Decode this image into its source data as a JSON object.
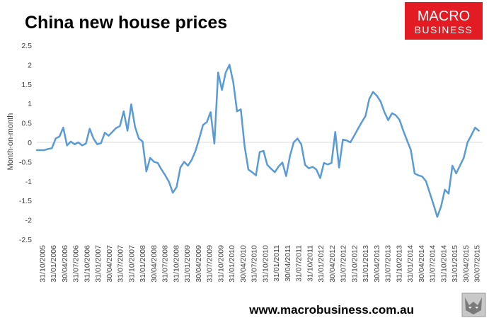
{
  "chart_data": {
    "type": "line",
    "title": "China new house prices",
    "xlabel": "",
    "ylabel": "Month-on-month",
    "ylim": [
      -2.5,
      2.5
    ],
    "yticks": [
      2.5,
      2,
      1.5,
      1,
      0.5,
      0,
      -0.5,
      -1,
      -1.5,
      -2,
      -2.5
    ],
    "grid": false,
    "legend": "none",
    "line_color": "#5b9bd5",
    "x_tick_labels": [
      "31/10/2005",
      "31/01/2006",
      "30/04/2006",
      "31/07/2006",
      "31/10/2006",
      "31/01/2007",
      "30/04/2007",
      "31/07/2007",
      "31/10/2007",
      "31/01/2008",
      "30/04/2008",
      "31/07/2008",
      "31/10/2008",
      "31/01/2009",
      "30/04/2009",
      "31/07/2009",
      "31/10/2009",
      "31/01/2010",
      "30/04/2010",
      "31/07/2010",
      "31/10/2010",
      "31/01/2011",
      "30/04/2011",
      "31/07/2011",
      "31/10/2011",
      "31/01/2012",
      "30/04/2012",
      "31/07/2012",
      "31/10/2012",
      "31/01/2013",
      "30/04/2013",
      "31/07/2013",
      "31/10/2013",
      "31/01/2014",
      "30/04/2014",
      "31/07/2014",
      "31/10/2014",
      "31/01/2015",
      "30/04/2015",
      "30/07/2015"
    ],
    "x_start": "2005-10",
    "x_end": "2015-08",
    "series": [
      {
        "values": [
          -0.2,
          -0.2,
          -0.2,
          -0.17,
          -0.15,
          0.1,
          0.15,
          0.38,
          -0.08,
          0.02,
          -0.05,
          0.0,
          -0.08,
          -0.03,
          0.35,
          0.1,
          -0.05,
          -0.02,
          0.25,
          0.17,
          0.27,
          0.37,
          0.42,
          0.8,
          0.3,
          0.98,
          0.4,
          0.1,
          0.02,
          -0.75,
          -0.4,
          -0.5,
          -0.53,
          -0.7,
          -0.85,
          -1.02,
          -1.3,
          -1.15,
          -0.65,
          -0.5,
          -0.6,
          -0.45,
          -0.22,
          0.1,
          0.45,
          0.52,
          0.78,
          -0.03,
          1.8,
          1.35,
          1.8,
          2.0,
          1.55,
          0.8,
          0.85,
          -0.1,
          -0.7,
          -0.77,
          -0.85,
          -0.25,
          -0.22,
          -0.58,
          -0.68,
          -0.77,
          -0.62,
          -0.52,
          -0.87,
          -0.35,
          0.0,
          0.1,
          -0.05,
          -0.58,
          -0.67,
          -0.63,
          -0.7,
          -0.92,
          -0.53,
          -0.57,
          -0.53,
          0.27,
          -0.65,
          0.07,
          0.05,
          0.0,
          0.17,
          0.35,
          0.52,
          0.68,
          1.12,
          1.3,
          1.2,
          1.05,
          0.78,
          0.57,
          0.75,
          0.7,
          0.58,
          0.3,
          0.05,
          -0.2,
          -0.8,
          -0.85,
          -0.88,
          -1.0,
          -1.3,
          -1.6,
          -1.92,
          -1.65,
          -1.22,
          -1.32,
          -0.6,
          -0.8,
          -0.6,
          -0.4,
          0.0,
          0.18,
          0.38,
          0.3
        ]
      }
    ]
  },
  "logo": {
    "line1": "MACRO",
    "line2": "BUSINESS",
    "color": "#e31b23"
  },
  "footer": {
    "url": "www.macrobusiness.com.au"
  },
  "mascot_icon": "wolf-icon"
}
